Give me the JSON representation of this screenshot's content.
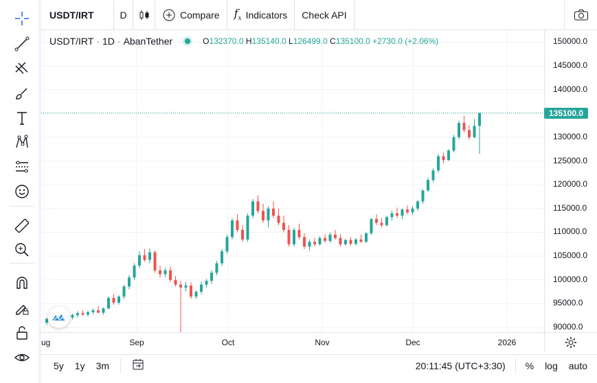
{
  "toolbar": {
    "symbol": "USDT/IRT",
    "interval": "D",
    "compare": "Compare",
    "indicators": "Indicators",
    "check_api": "Check API"
  },
  "left_tools": [
    "crosshair-icon",
    "trend-line-icon",
    "fib-icon",
    "brush-icon",
    "text-icon",
    "pattern-icon",
    "forecast-icon",
    "emoji-icon",
    "ruler-icon",
    "zoom-in-icon",
    "magnet-icon",
    "lock-drawing-icon",
    "lock-icon",
    "eye-icon"
  ],
  "legend": {
    "symbol": "USDT/IRT",
    "sep": "·",
    "interval": "1D",
    "exchange": "AbanTether",
    "o_label": "O",
    "o": "132370.0",
    "h_label": "H",
    "h": "135140.0",
    "l_label": "L",
    "l": "126499.0",
    "c_label": "C",
    "c": "135100.0",
    "change": "+2730.0 (+2.06%)"
  },
  "price_axis": {
    "ticks": [
      "150000.0",
      "145000.0",
      "140000.0",
      "135000.0",
      "130000.0",
      "125000.0",
      "120000.0",
      "115000.0",
      "110000.0",
      "105000.0",
      "100000.0",
      "95000.0",
      "90000.0"
    ],
    "last_price": "135100.0"
  },
  "time_axis": {
    "ticks": [
      "ug",
      "Sep",
      "Oct",
      "Nov",
      "Dec",
      "2026"
    ]
  },
  "bottom": {
    "ranges": [
      "5y",
      "1y",
      "3m"
    ],
    "clock": "20:11:45 (UTC+3:30)",
    "percent": "%",
    "log": "log",
    "auto": "auto"
  },
  "colors": {
    "up": "#26a69a",
    "down": "#ef5350",
    "grid": "#f0f3fa"
  },
  "chart_data": {
    "type": "candlestick",
    "ylim": [
      89000,
      152500
    ],
    "last": 135100,
    "candles": [
      [
        91000,
        92000,
        90500,
        91800
      ],
      [
        91800,
        92500,
        91200,
        91500
      ],
      [
        91500,
        92300,
        91000,
        92000
      ],
      [
        92000,
        92800,
        91600,
        92400
      ],
      [
        92400,
        93000,
        91900,
        92100
      ],
      [
        92100,
        92900,
        91700,
        92600
      ],
      [
        92600,
        93400,
        92100,
        93000
      ],
      [
        93000,
        93600,
        92500,
        92700
      ],
      [
        92700,
        93500,
        92300,
        93200
      ],
      [
        93200,
        94000,
        92800,
        93600
      ],
      [
        93600,
        94500,
        93000,
        93100
      ],
      [
        93100,
        94200,
        92700,
        94000
      ],
      [
        94000,
        96500,
        93800,
        96200
      ],
      [
        96200,
        97000,
        94800,
        95200
      ],
      [
        95200,
        96800,
        94800,
        96500
      ],
      [
        96500,
        99000,
        96000,
        98600
      ],
      [
        98600,
        101000,
        98000,
        100500
      ],
      [
        100500,
        103500,
        100000,
        103000
      ],
      [
        103000,
        106000,
        102500,
        105200
      ],
      [
        105200,
        106500,
        103800,
        104200
      ],
      [
        104200,
        106600,
        103500,
        105800
      ],
      [
        105800,
        106200,
        101500,
        102000
      ],
      [
        102000,
        103000,
        100500,
        101200
      ],
      [
        101200,
        102500,
        100600,
        102000
      ],
      [
        102000,
        102800,
        99500,
        100000
      ],
      [
        100000,
        100800,
        98600,
        99000
      ],
      [
        99000,
        99800,
        89000,
        98400
      ],
      [
        98400,
        99600,
        97600,
        98800
      ],
      [
        98800,
        99500,
        96000,
        96500
      ],
      [
        96500,
        97800,
        96000,
        97500
      ],
      [
        97500,
        99600,
        97000,
        99000
      ],
      [
        99000,
        100200,
        98400,
        99800
      ],
      [
        99800,
        102000,
        99200,
        101500
      ],
      [
        101500,
        104000,
        101000,
        103500
      ],
      [
        103500,
        106500,
        103000,
        106000
      ],
      [
        106000,
        109500,
        105500,
        109000
      ],
      [
        109000,
        113000,
        108500,
        112500
      ],
      [
        112500,
        113800,
        110000,
        110500
      ],
      [
        110500,
        111500,
        108000,
        108500
      ],
      [
        108500,
        114000,
        108000,
        113500
      ],
      [
        113500,
        117000,
        113000,
        116500
      ],
      [
        116500,
        117800,
        114000,
        114500
      ],
      [
        114500,
        116000,
        112000,
        112500
      ],
      [
        112500,
        115500,
        111000,
        115000
      ],
      [
        115000,
        116500,
        113000,
        113500
      ],
      [
        113500,
        115000,
        111500,
        112000
      ],
      [
        112000,
        113500,
        110000,
        110500
      ],
      [
        110500,
        111500,
        107000,
        107500
      ],
      [
        107500,
        111000,
        107000,
        110500
      ],
      [
        110500,
        111800,
        108500,
        109000
      ],
      [
        109000,
        109800,
        106500,
        107000
      ],
      [
        107000,
        108500,
        106200,
        108000
      ],
      [
        108000,
        108800,
        107000,
        107500
      ],
      [
        107500,
        109200,
        107200,
        108800
      ],
      [
        108800,
        109600,
        107800,
        108200
      ],
      [
        108200,
        110000,
        107800,
        109500
      ],
      [
        109500,
        110500,
        108500,
        108800
      ],
      [
        108800,
        109600,
        107000,
        107500
      ],
      [
        107500,
        108600,
        107200,
        108400
      ],
      [
        108400,
        109000,
        107200,
        107600
      ],
      [
        107600,
        108800,
        107200,
        108500
      ],
      [
        108500,
        109500,
        107800,
        108000
      ],
      [
        108000,
        110000,
        107800,
        109800
      ],
      [
        109800,
        113000,
        109500,
        112800
      ],
      [
        112800,
        113800,
        111500,
        112000
      ],
      [
        112000,
        113000,
        111000,
        111500
      ],
      [
        111500,
        113500,
        111200,
        113200
      ],
      [
        113200,
        114500,
        112500,
        114000
      ],
      [
        114000,
        115200,
        113000,
        113500
      ],
      [
        113500,
        115000,
        112800,
        114800
      ],
      [
        114800,
        115600,
        113800,
        114200
      ],
      [
        114200,
        115500,
        113600,
        115000
      ],
      [
        115000,
        116800,
        114500,
        116500
      ],
      [
        116500,
        119000,
        116000,
        118800
      ],
      [
        118800,
        121500,
        118500,
        121000
      ],
      [
        121000,
        123500,
        120500,
        123000
      ],
      [
        123000,
        126500,
        122500,
        126000
      ],
      [
        126000,
        126800,
        124500,
        125200
      ],
      [
        125200,
        127500,
        125000,
        127200
      ],
      [
        127200,
        130500,
        126800,
        130000
      ],
      [
        130000,
        133500,
        129500,
        133000
      ],
      [
        133000,
        134500,
        131000,
        131500
      ],
      [
        131500,
        132500,
        129500,
        130000
      ],
      [
        130000,
        133800,
        129800,
        132370
      ],
      [
        132370,
        135140,
        126499,
        135100
      ]
    ]
  }
}
